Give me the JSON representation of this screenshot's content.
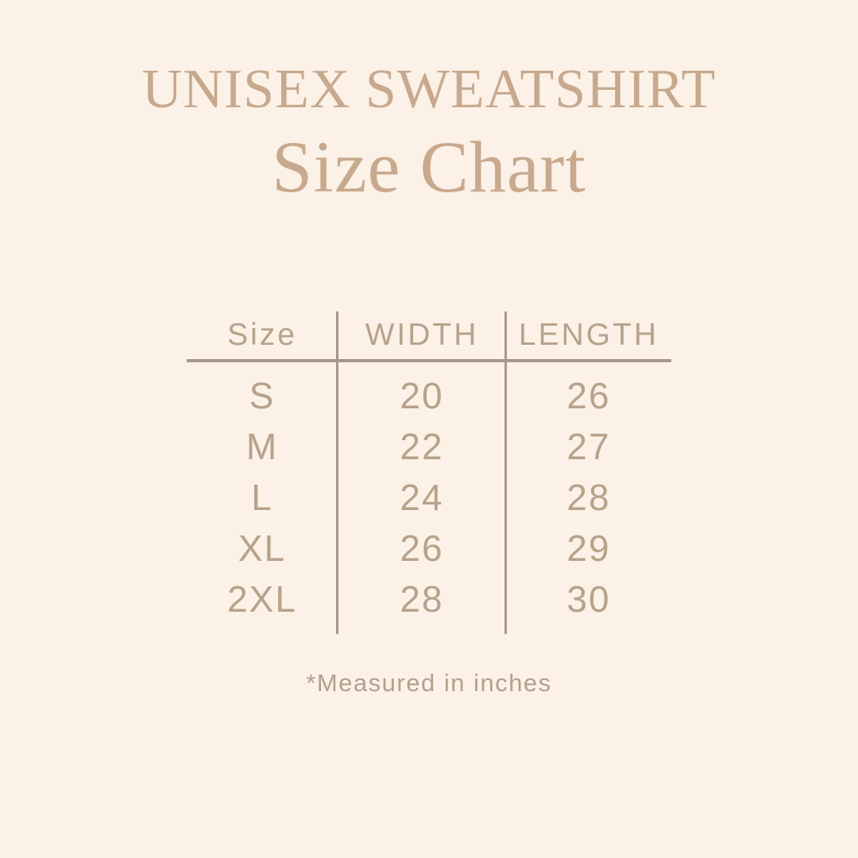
{
  "header": {
    "title": "UNISEX SWEATSHIRT",
    "subtitle": "Size Chart"
  },
  "table": {
    "columns": [
      "Size",
      "WIDTH",
      "LENGTH"
    ],
    "rows": [
      {
        "size": "S",
        "width": "20",
        "length": "26"
      },
      {
        "size": "M",
        "width": "22",
        "length": "27"
      },
      {
        "size": "L",
        "width": "24",
        "length": "28"
      },
      {
        "size": "XL",
        "width": "26",
        "length": "29"
      },
      {
        "size": "2XL",
        "width": "28",
        "length": "30"
      }
    ]
  },
  "footer": {
    "note": "*Measured in inches"
  },
  "colors": {
    "background": "#fbf1e7",
    "accent": "#c8a98d",
    "table_text": "#b7a28a",
    "line": "#a5988a",
    "note": "#b3a08c"
  },
  "chart_data": {
    "type": "table",
    "title": "UNISEX SWEATSHIRT Size Chart",
    "columns": [
      "Size",
      "WIDTH",
      "LENGTH"
    ],
    "rows": [
      [
        "S",
        20,
        26
      ],
      [
        "M",
        22,
        27
      ],
      [
        "L",
        24,
        28
      ],
      [
        "XL",
        26,
        29
      ],
      [
        "2XL",
        28,
        30
      ]
    ],
    "units": "inches",
    "note": "*Measured in inches"
  }
}
